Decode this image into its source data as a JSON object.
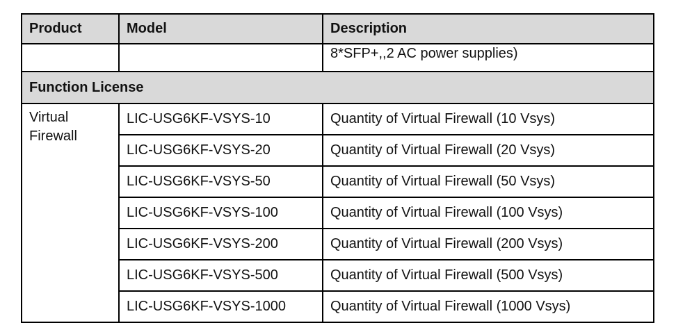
{
  "table": {
    "headers": [
      "Product",
      "Model",
      "Description"
    ],
    "continued_row": {
      "product": "",
      "model": "",
      "description": "8*SFP+,,2 AC power supplies)"
    },
    "section_title": "Function License",
    "product_group": "Virtual Firewall",
    "rows": [
      {
        "model": "LIC-USG6KF-VSYS-10",
        "description": "Quantity of Virtual Firewall (10 Vsys)"
      },
      {
        "model": "LIC-USG6KF-VSYS-20",
        "description": "Quantity of Virtual Firewall (20 Vsys)"
      },
      {
        "model": "LIC-USG6KF-VSYS-50",
        "description": "Quantity of Virtual Firewall (50 Vsys)"
      },
      {
        "model": "LIC-USG6KF-VSYS-100",
        "description": "Quantity of Virtual Firewall (100 Vsys)"
      },
      {
        "model": "LIC-USG6KF-VSYS-200",
        "description": "Quantity of Virtual Firewall (200 Vsys)"
      },
      {
        "model": "LIC-USG6KF-VSYS-500",
        "description": "Quantity of Virtual Firewall (500 Vsys)"
      },
      {
        "model": "LIC-USG6KF-VSYS-1000",
        "description": "Quantity of Virtual Firewall (1000 Vsys)"
      }
    ]
  },
  "colors": {
    "header_bg": "#d9d9d9",
    "border": "#000000"
  }
}
